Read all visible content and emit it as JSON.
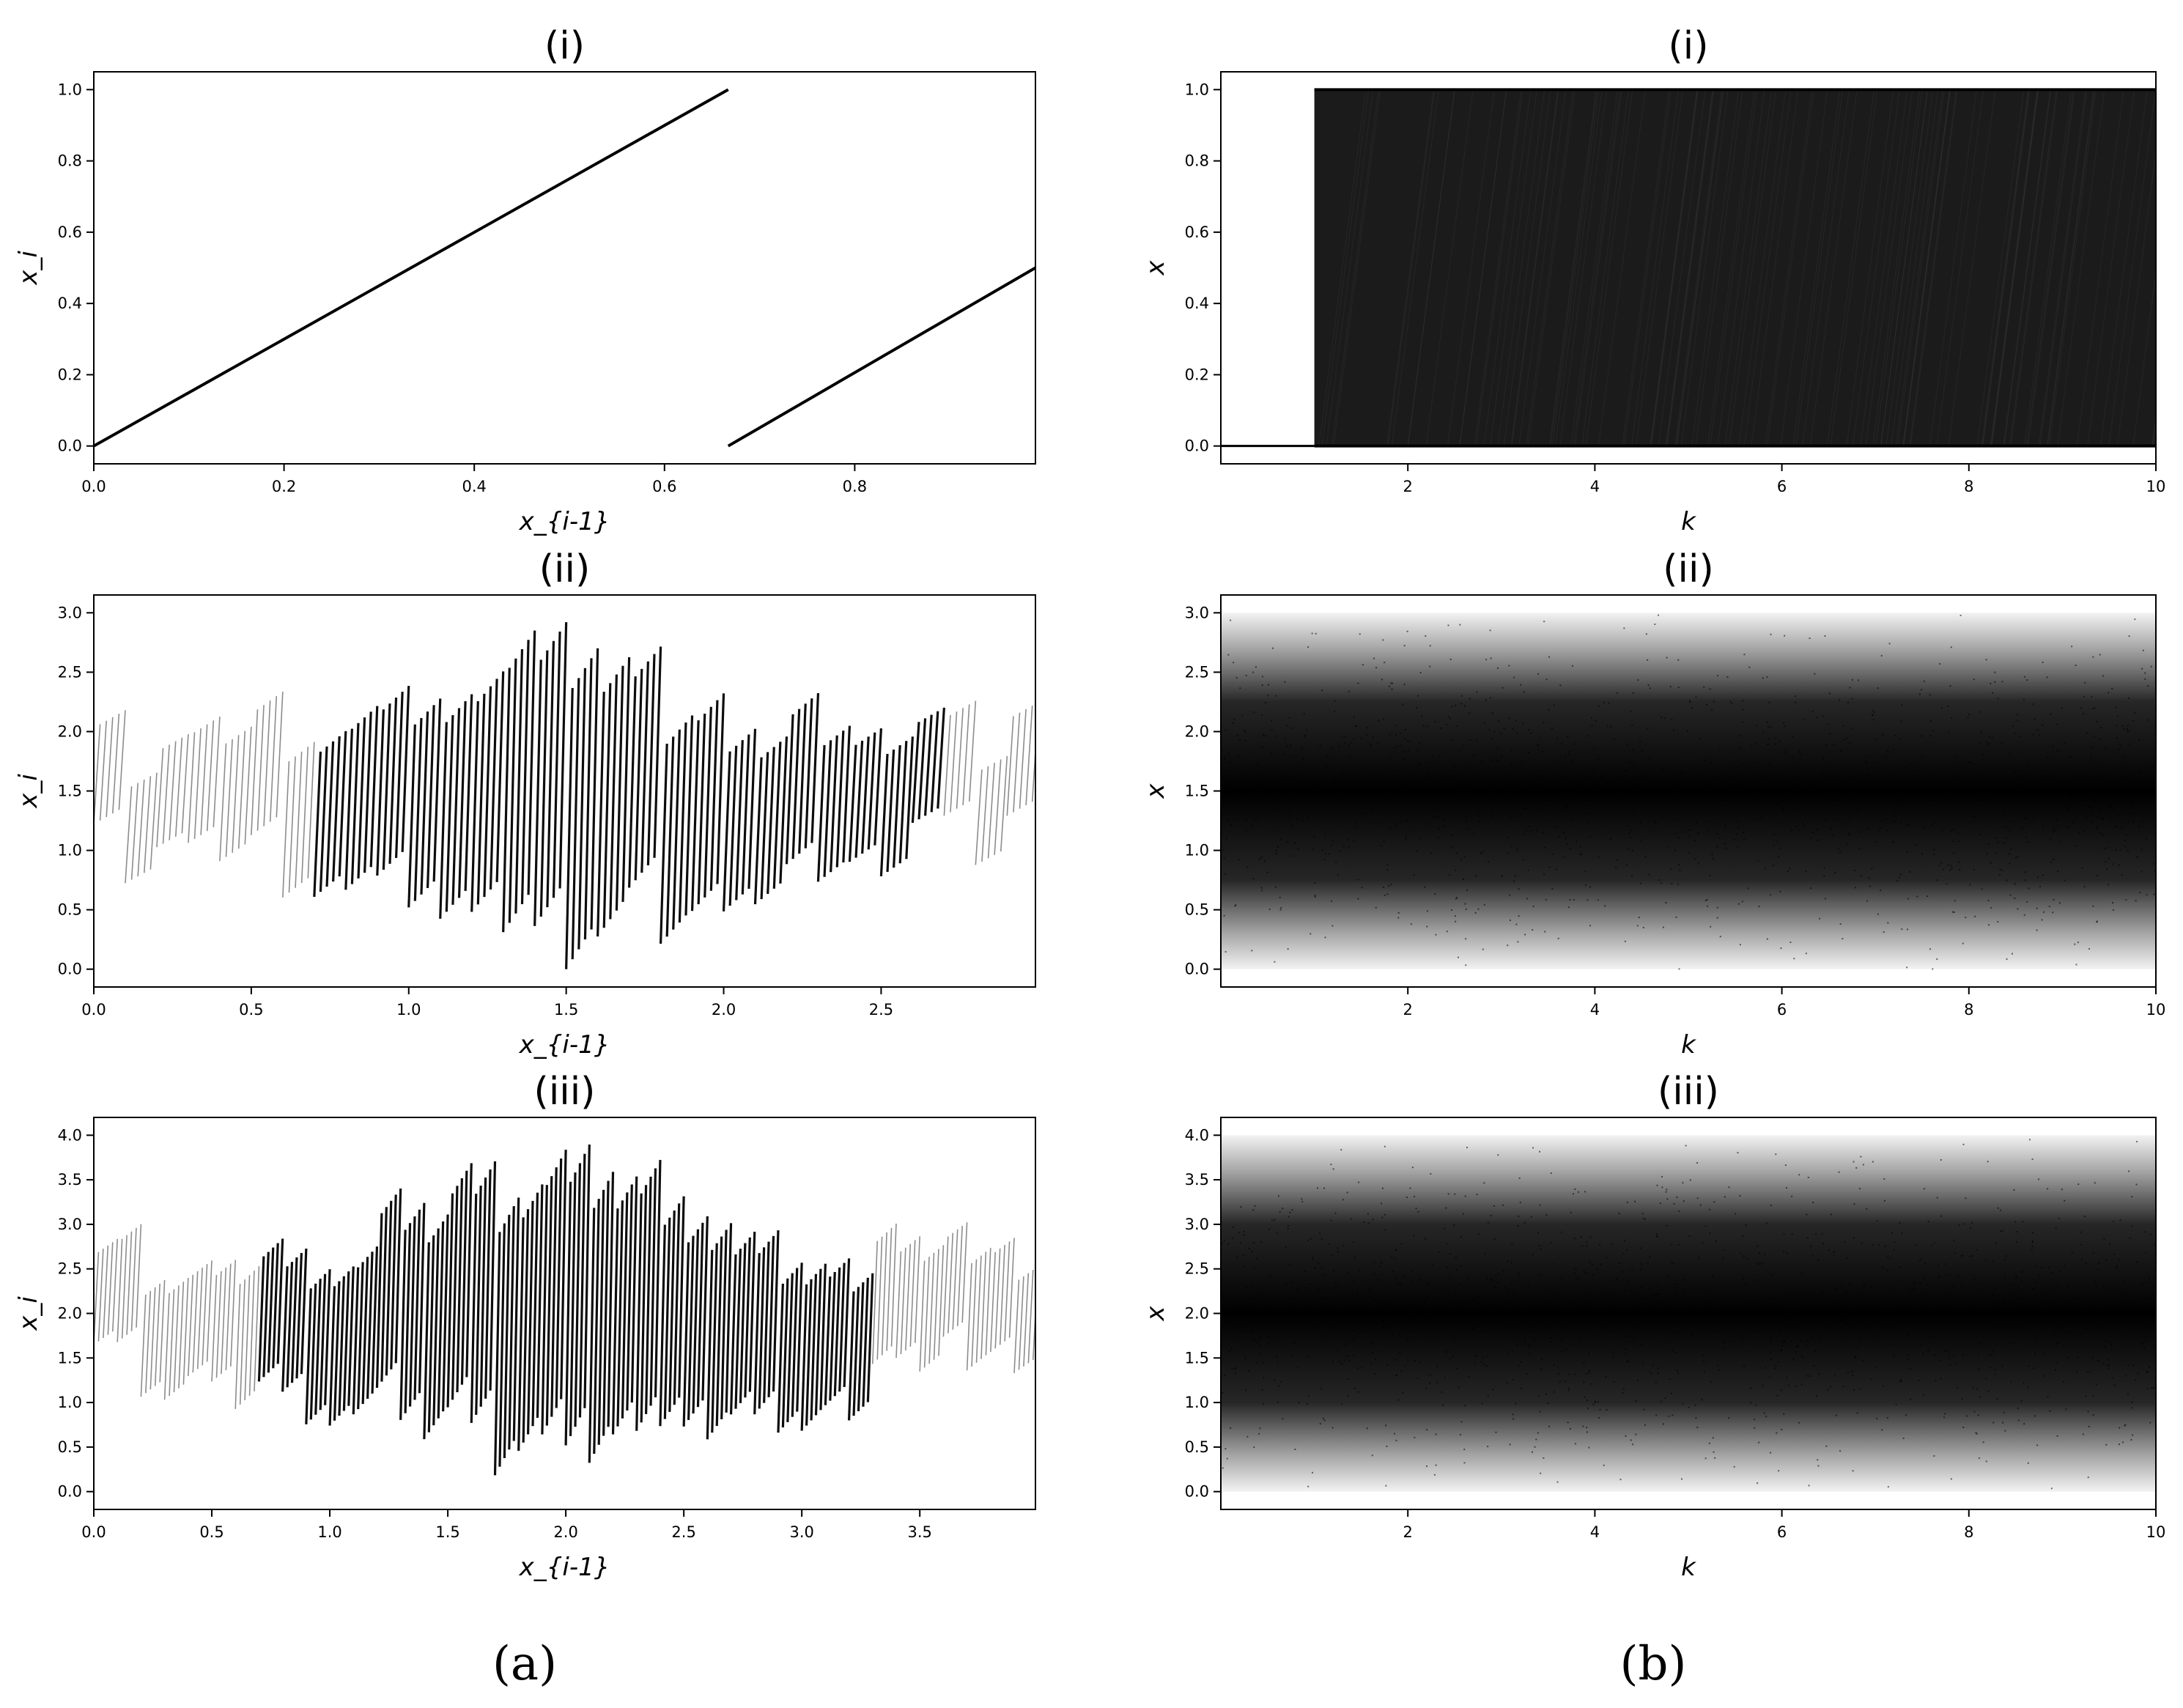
{
  "figure_labels": [
    "(a)",
    "(b)"
  ],
  "chart_data": [
    {
      "id": "a-i",
      "type": "scatter",
      "title": "(i)",
      "xlabel": "x_{i-1}",
      "ylabel": "x_i",
      "xlim": [
        0.0,
        0.99
      ],
      "ylim": [
        -0.05,
        1.05
      ],
      "xticks": [
        0.0,
        0.2,
        0.4,
        0.6,
        0.8
      ],
      "yticks": [
        0.0,
        0.2,
        0.4,
        0.6,
        0.8,
        1.0
      ],
      "tick_decimals": 1,
      "grid": false,
      "series": [
        {
          "kind": "segments",
          "segments": [
            [
              0.0,
              0.0,
              0.667,
              1.0
            ],
            [
              0.667,
              0.0,
              0.99,
              0.5
            ]
          ]
        }
      ]
    },
    {
      "id": "b-i",
      "type": "scatter",
      "title": "(i)",
      "xlabel": "k",
      "ylabel": "x",
      "xlim": [
        0.0,
        10.0
      ],
      "ylim": [
        -0.05,
        1.05
      ],
      "xticks": [
        2,
        4,
        6,
        8,
        10
      ],
      "yticks": [
        0.0,
        0.2,
        0.4,
        0.6,
        0.8,
        1.0
      ],
      "tick_decimals": 1,
      "x_tick_decimals": 0,
      "grid": false,
      "series": [
        {
          "kind": "bifurcation",
          "flat_until": 1.0,
          "fill_range": [
            0.0,
            1.0
          ]
        }
      ]
    },
    {
      "id": "a-ii",
      "type": "scatter",
      "title": "(ii)",
      "xlabel": "x_{i-1}",
      "ylabel": "x_i",
      "xlim": [
        0.0,
        2.99
      ],
      "ylim": [
        -0.15,
        3.15
      ],
      "xticks": [
        0.0,
        0.5,
        1.0,
        1.5,
        2.0,
        2.5
      ],
      "yticks": [
        0.0,
        0.5,
        1.0,
        1.5,
        2.0,
        2.5,
        3.0
      ],
      "tick_decimals": 1,
      "grid": false,
      "series": [
        {
          "kind": "sawtooth",
          "teeth": 30,
          "tooth_width": 0.1,
          "range": [
            0.0,
            3.0
          ],
          "dense_segments": [
            [
              0.7,
              2.0
            ],
            [
              2.0,
              2.7
            ]
          ]
        }
      ]
    },
    {
      "id": "b-ii",
      "type": "scatter",
      "title": "(ii)",
      "xlabel": "k",
      "ylabel": "x",
      "xlim": [
        0.0,
        10.0
      ],
      "ylim": [
        -0.15,
        3.15
      ],
      "xticks": [
        2,
        4,
        6,
        8,
        10
      ],
      "yticks": [
        0.0,
        0.5,
        1.0,
        1.5,
        2.0,
        2.5,
        3.0
      ],
      "tick_decimals": 1,
      "x_tick_decimals": 0,
      "grid": false,
      "series": [
        {
          "kind": "density_band",
          "center": 1.5,
          "spread": 1.5
        }
      ]
    },
    {
      "id": "a-iii",
      "type": "scatter",
      "title": "(iii)",
      "xlabel": "x_{i-1}",
      "ylabel": "x_i",
      "xlim": [
        0.0,
        3.99
      ],
      "ylim": [
        -0.2,
        4.2
      ],
      "xticks": [
        0.0,
        0.5,
        1.0,
        1.5,
        2.0,
        2.5,
        3.0,
        3.5
      ],
      "yticks": [
        0.0,
        0.5,
        1.0,
        1.5,
        2.0,
        2.5,
        3.0,
        3.5,
        4.0
      ],
      "tick_decimals": 1,
      "grid": false,
      "series": [
        {
          "kind": "sawtooth",
          "teeth": 40,
          "tooth_width": 0.1,
          "range": [
            0.0,
            4.0
          ],
          "dense_segments": [
            [
              0.7,
              2.0
            ],
            [
              2.0,
              3.3
            ]
          ]
        }
      ]
    },
    {
      "id": "b-iii",
      "type": "scatter",
      "title": "(iii)",
      "xlabel": "k",
      "ylabel": "x",
      "xlim": [
        0.0,
        10.0
      ],
      "ylim": [
        -0.2,
        4.2
      ],
      "xticks": [
        2,
        4,
        6,
        8,
        10
      ],
      "yticks": [
        0.0,
        0.5,
        1.0,
        1.5,
        2.0,
        2.5,
        3.0,
        3.5,
        4.0
      ],
      "tick_decimals": 1,
      "x_tick_decimals": 0,
      "grid": false,
      "series": [
        {
          "kind": "density_band",
          "center": 2.0,
          "spread": 2.0
        }
      ]
    }
  ]
}
